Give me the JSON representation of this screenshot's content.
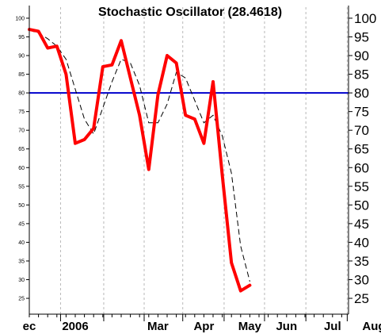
{
  "chart_data": {
    "type": "line",
    "title": "Stochastic Oscillator (28.4618)",
    "xlabel": "",
    "ylabel": "",
    "ylim": [
      21,
      101
    ],
    "grid": true,
    "reference_line": 80,
    "colors": {
      "k_line": "#ff0000",
      "d_line": "#000000",
      "reference": "#0000cc",
      "grid": "#b8b8b8",
      "axis": "#000000"
    },
    "y_ticks_left": [
      25,
      30,
      35,
      40,
      45,
      50,
      55,
      60,
      65,
      70,
      75,
      80,
      85,
      90,
      95,
      100
    ],
    "y_ticks_right": [
      25,
      30,
      35,
      40,
      45,
      50,
      55,
      60,
      65,
      70,
      75,
      80,
      85,
      90,
      95,
      100
    ],
    "x_labels": [
      {
        "label": "ec",
        "x": 0
      },
      {
        "label": "2006",
        "x": 5
      },
      {
        "label": "Mar",
        "x": 14
      },
      {
        "label": "Apr",
        "x": 19
      },
      {
        "label": "May",
        "x": 24
      },
      {
        "label": "Jun",
        "x": 28
      },
      {
        "label": "Jul",
        "x": 33
      },
      {
        "label": "Aug",
        "x": 37.5
      }
    ],
    "x_gridlines": [
      3.4,
      8.1,
      12.5,
      16.7,
      21.2,
      25.6,
      30.1,
      34.6,
      39.0
    ],
    "series": [
      {
        "values": [
          [
            0,
            97.0
          ],
          [
            1,
            96.5
          ],
          [
            2,
            92.0
          ],
          [
            3,
            92.5
          ],
          [
            4,
            85.0
          ],
          [
            5,
            66.5
          ],
          [
            6,
            67.5
          ],
          [
            7,
            70.5
          ],
          [
            8,
            87.0
          ],
          [
            9,
            87.5
          ],
          [
            10,
            94.0
          ],
          [
            11,
            84.0
          ],
          [
            12,
            74.0
          ],
          [
            13,
            59.5
          ],
          [
            14,
            79.5
          ],
          [
            15,
            90.0
          ],
          [
            16,
            88.0
          ],
          [
            17,
            74.0
          ],
          [
            18,
            73.0
          ],
          [
            19,
            66.5
          ],
          [
            20,
            83.0
          ],
          [
            21,
            58.0
          ],
          [
            22,
            34.5
          ],
          [
            23,
            27.0
          ],
          [
            24,
            28.5
          ]
        ]
      },
      {
        "values": [
          [
            0,
            96.8
          ],
          [
            1,
            96.0
          ],
          [
            2,
            94.5
          ],
          [
            3,
            92.5
          ],
          [
            4,
            89.0
          ],
          [
            5,
            81.0
          ],
          [
            6,
            73.0
          ],
          [
            7,
            69.0
          ],
          [
            8,
            76.0
          ],
          [
            9,
            83.0
          ],
          [
            10,
            89.0
          ],
          [
            11,
            88.0
          ],
          [
            12,
            82.0
          ],
          [
            13,
            72.0
          ],
          [
            14,
            72.0
          ],
          [
            15,
            77.0
          ],
          [
            16,
            85.5
          ],
          [
            17,
            84.0
          ],
          [
            18,
            78.0
          ],
          [
            19,
            72.0
          ],
          [
            20,
            74.0
          ],
          [
            21,
            68.5
          ],
          [
            22,
            58.5
          ],
          [
            23,
            39.0
          ],
          [
            24,
            29.5
          ]
        ]
      }
    ]
  }
}
